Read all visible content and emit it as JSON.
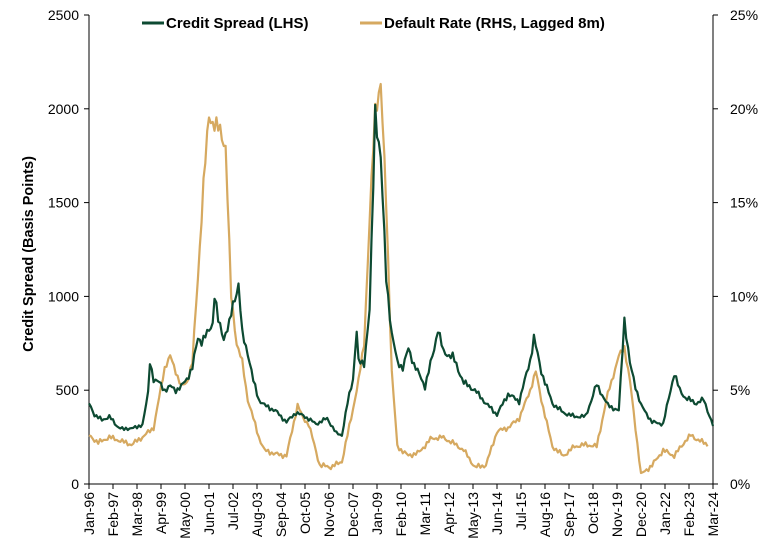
{
  "chart_data": {
    "type": "line",
    "title": "",
    "xlabel": "",
    "ylabel": "Credit Spread (Basis Points)",
    "y2label": "",
    "ylim": [
      0,
      2500
    ],
    "y2lim": [
      0,
      25
    ],
    "yticks": [
      "0",
      "500",
      "1000",
      "1500",
      "2000",
      "2500"
    ],
    "y2ticks": [
      "0%",
      "5%",
      "10%",
      "15%",
      "20%",
      "25%"
    ],
    "xlim": [
      "Jan-96",
      "Mar-24"
    ],
    "xticks": [
      "Jan-96",
      "Feb-97",
      "Mar-98",
      "Apr-99",
      "May-00",
      "Jun-01",
      "Jul-02",
      "Aug-03",
      "Sep-04",
      "Oct-05",
      "Nov-06",
      "Dec-07",
      "Jan-09",
      "Feb-10",
      "Mar-11",
      "Apr-12",
      "May-13",
      "Jun-14",
      "Jul-15",
      "Aug-16",
      "Sep-17",
      "Oct-18",
      "Nov-19",
      "Dec-20",
      "Jan-22",
      "Feb-23",
      "Mar-24"
    ],
    "grid": false,
    "legend_position": "top",
    "series": [
      {
        "name": "Credit Spread (LHS)",
        "axis": "left",
        "color": "#0d4a32",
        "points": [
          [
            "1996-01",
            430
          ],
          [
            "1996-04",
            370
          ],
          [
            "1996-08",
            340
          ],
          [
            "1996-12",
            360
          ],
          [
            "1997-04",
            310
          ],
          [
            "1997-08",
            290
          ],
          [
            "1997-12",
            300
          ],
          [
            "1998-03",
            300
          ],
          [
            "1998-06",
            320
          ],
          [
            "1998-09",
            480
          ],
          [
            "1998-10",
            650
          ],
          [
            "1998-12",
            560
          ],
          [
            "1999-03",
            540
          ],
          [
            "1999-06",
            500
          ],
          [
            "1999-09",
            520
          ],
          [
            "1999-12",
            500
          ],
          [
            "2000-03",
            520
          ],
          [
            "2000-06",
            560
          ],
          [
            "2000-09",
            620
          ],
          [
            "2000-12",
            780
          ],
          [
            "2001-02",
            760
          ],
          [
            "2001-05",
            800
          ],
          [
            "2001-08",
            860
          ],
          [
            "2001-09",
            1010
          ],
          [
            "2001-11",
            870
          ],
          [
            "2002-02",
            780
          ],
          [
            "2002-05",
            850
          ],
          [
            "2002-07",
            960
          ],
          [
            "2002-10",
            1060
          ],
          [
            "2002-12",
            800
          ],
          [
            "2003-03",
            700
          ],
          [
            "2003-06",
            550
          ],
          [
            "2003-09",
            450
          ],
          [
            "2003-12",
            420
          ],
          [
            "2004-06",
            390
          ],
          [
            "2004-12",
            330
          ],
          [
            "2005-05",
            380
          ],
          [
            "2005-10",
            360
          ],
          [
            "2006-04",
            320
          ],
          [
            "2006-10",
            350
          ],
          [
            "2007-03",
            270
          ],
          [
            "2007-06",
            260
          ],
          [
            "2007-09",
            430
          ],
          [
            "2007-12",
            560
          ],
          [
            "2008-02",
            820
          ],
          [
            "2008-03",
            650
          ],
          [
            "2008-06",
            640
          ],
          [
            "2008-09",
            930
          ],
          [
            "2008-11",
            1600
          ],
          [
            "2008-12",
            1990
          ],
          [
            "2009-03",
            1740
          ],
          [
            "2009-06",
            1100
          ],
          [
            "2009-09",
            800
          ],
          [
            "2009-12",
            650
          ],
          [
            "2010-03",
            620
          ],
          [
            "2010-06",
            720
          ],
          [
            "2010-09",
            640
          ],
          [
            "2011-03",
            520
          ],
          [
            "2011-08",
            720
          ],
          [
            "2011-10",
            830
          ],
          [
            "2012-01",
            700
          ],
          [
            "2012-06",
            680
          ],
          [
            "2012-12",
            540
          ],
          [
            "2013-06",
            500
          ],
          [
            "2013-12",
            430
          ],
          [
            "2014-06",
            370
          ],
          [
            "2014-12",
            480
          ],
          [
            "2015-06",
            440
          ],
          [
            "2015-12",
            660
          ],
          [
            "2016-02",
            780
          ],
          [
            "2016-06",
            600
          ],
          [
            "2016-12",
            430
          ],
          [
            "2017-06",
            380
          ],
          [
            "2017-12",
            360
          ],
          [
            "2018-06",
            360
          ],
          [
            "2018-12",
            530
          ],
          [
            "2019-06",
            420
          ],
          [
            "2019-12",
            390
          ],
          [
            "2020-03",
            880
          ],
          [
            "2020-06",
            640
          ],
          [
            "2020-09",
            520
          ],
          [
            "2020-12",
            420
          ],
          [
            "2021-06",
            330
          ],
          [
            "2021-12",
            320
          ],
          [
            "2022-06",
            590
          ],
          [
            "2022-09",
            500
          ],
          [
            "2022-12",
            460
          ],
          [
            "2023-06",
            430
          ],
          [
            "2023-10",
            450
          ],
          [
            "2024-03",
            310
          ]
        ]
      },
      {
        "name": "Default Rate (RHS, Lagged 8m)",
        "axis": "right",
        "color": "#d6a960",
        "points": [
          [
            "1996-01",
            2.6
          ],
          [
            "1996-06",
            2.2
          ],
          [
            "1996-12",
            2.5
          ],
          [
            "1997-06",
            2.3
          ],
          [
            "1997-12",
            2.1
          ],
          [
            "1998-06",
            2.5
          ],
          [
            "1998-12",
            3.0
          ],
          [
            "1999-06",
            6.2
          ],
          [
            "1999-09",
            6.8
          ],
          [
            "1999-12",
            6.0
          ],
          [
            "2000-03",
            5.2
          ],
          [
            "2000-06",
            5.4
          ],
          [
            "2000-09",
            6.5
          ],
          [
            "2000-12",
            11.0
          ],
          [
            "2001-03",
            16.0
          ],
          [
            "2001-06",
            19.6
          ],
          [
            "2001-09",
            19.2
          ],
          [
            "2001-12",
            18.8
          ],
          [
            "2002-03",
            18.0
          ],
          [
            "2002-06",
            10.0
          ],
          [
            "2002-09",
            7.5
          ],
          [
            "2002-12",
            6.5
          ],
          [
            "2003-03",
            4.5
          ],
          [
            "2003-06",
            3.5
          ],
          [
            "2003-09",
            2.5
          ],
          [
            "2003-12",
            1.8
          ],
          [
            "2004-06",
            1.6
          ],
          [
            "2004-12",
            1.5
          ],
          [
            "2005-06",
            4.2
          ],
          [
            "2005-09",
            3.5
          ],
          [
            "2005-12",
            3.2
          ],
          [
            "2006-06",
            1.0
          ],
          [
            "2006-12",
            0.9
          ],
          [
            "2007-06",
            1.2
          ],
          [
            "2007-12",
            4.0
          ],
          [
            "2008-03",
            5.5
          ],
          [
            "2008-06",
            7.5
          ],
          [
            "2008-09",
            14.0
          ],
          [
            "2008-12",
            20.0
          ],
          [
            "2009-03",
            21.3
          ],
          [
            "2009-06",
            15.0
          ],
          [
            "2009-09",
            6.0
          ],
          [
            "2009-12",
            2.0
          ],
          [
            "2010-06",
            1.5
          ],
          [
            "2010-12",
            1.7
          ],
          [
            "2011-06",
            2.4
          ],
          [
            "2011-12",
            2.5
          ],
          [
            "2012-06",
            2.2
          ],
          [
            "2012-12",
            1.8
          ],
          [
            "2013-06",
            0.9
          ],
          [
            "2013-12",
            1.0
          ],
          [
            "2014-06",
            2.8
          ],
          [
            "2014-12",
            3.0
          ],
          [
            "2015-06",
            3.5
          ],
          [
            "2015-12",
            5.0
          ],
          [
            "2016-03",
            6.0
          ],
          [
            "2016-06",
            4.5
          ],
          [
            "2016-12",
            2.0
          ],
          [
            "2017-06",
            1.5
          ],
          [
            "2017-12",
            2.0
          ],
          [
            "2018-06",
            2.1
          ],
          [
            "2018-12",
            2.0
          ],
          [
            "2019-06",
            4.8
          ],
          [
            "2019-12",
            6.8
          ],
          [
            "2020-03",
            7.3
          ],
          [
            "2020-06",
            5.5
          ],
          [
            "2020-09",
            3.0
          ],
          [
            "2020-12",
            0.5
          ],
          [
            "2021-06",
            1.0
          ],
          [
            "2021-12",
            1.8
          ],
          [
            "2022-06",
            1.5
          ],
          [
            "2022-12",
            2.3
          ],
          [
            "2023-03",
            2.6
          ],
          [
            "2023-06",
            2.4
          ],
          [
            "2023-12",
            2.1
          ]
        ]
      }
    ]
  }
}
